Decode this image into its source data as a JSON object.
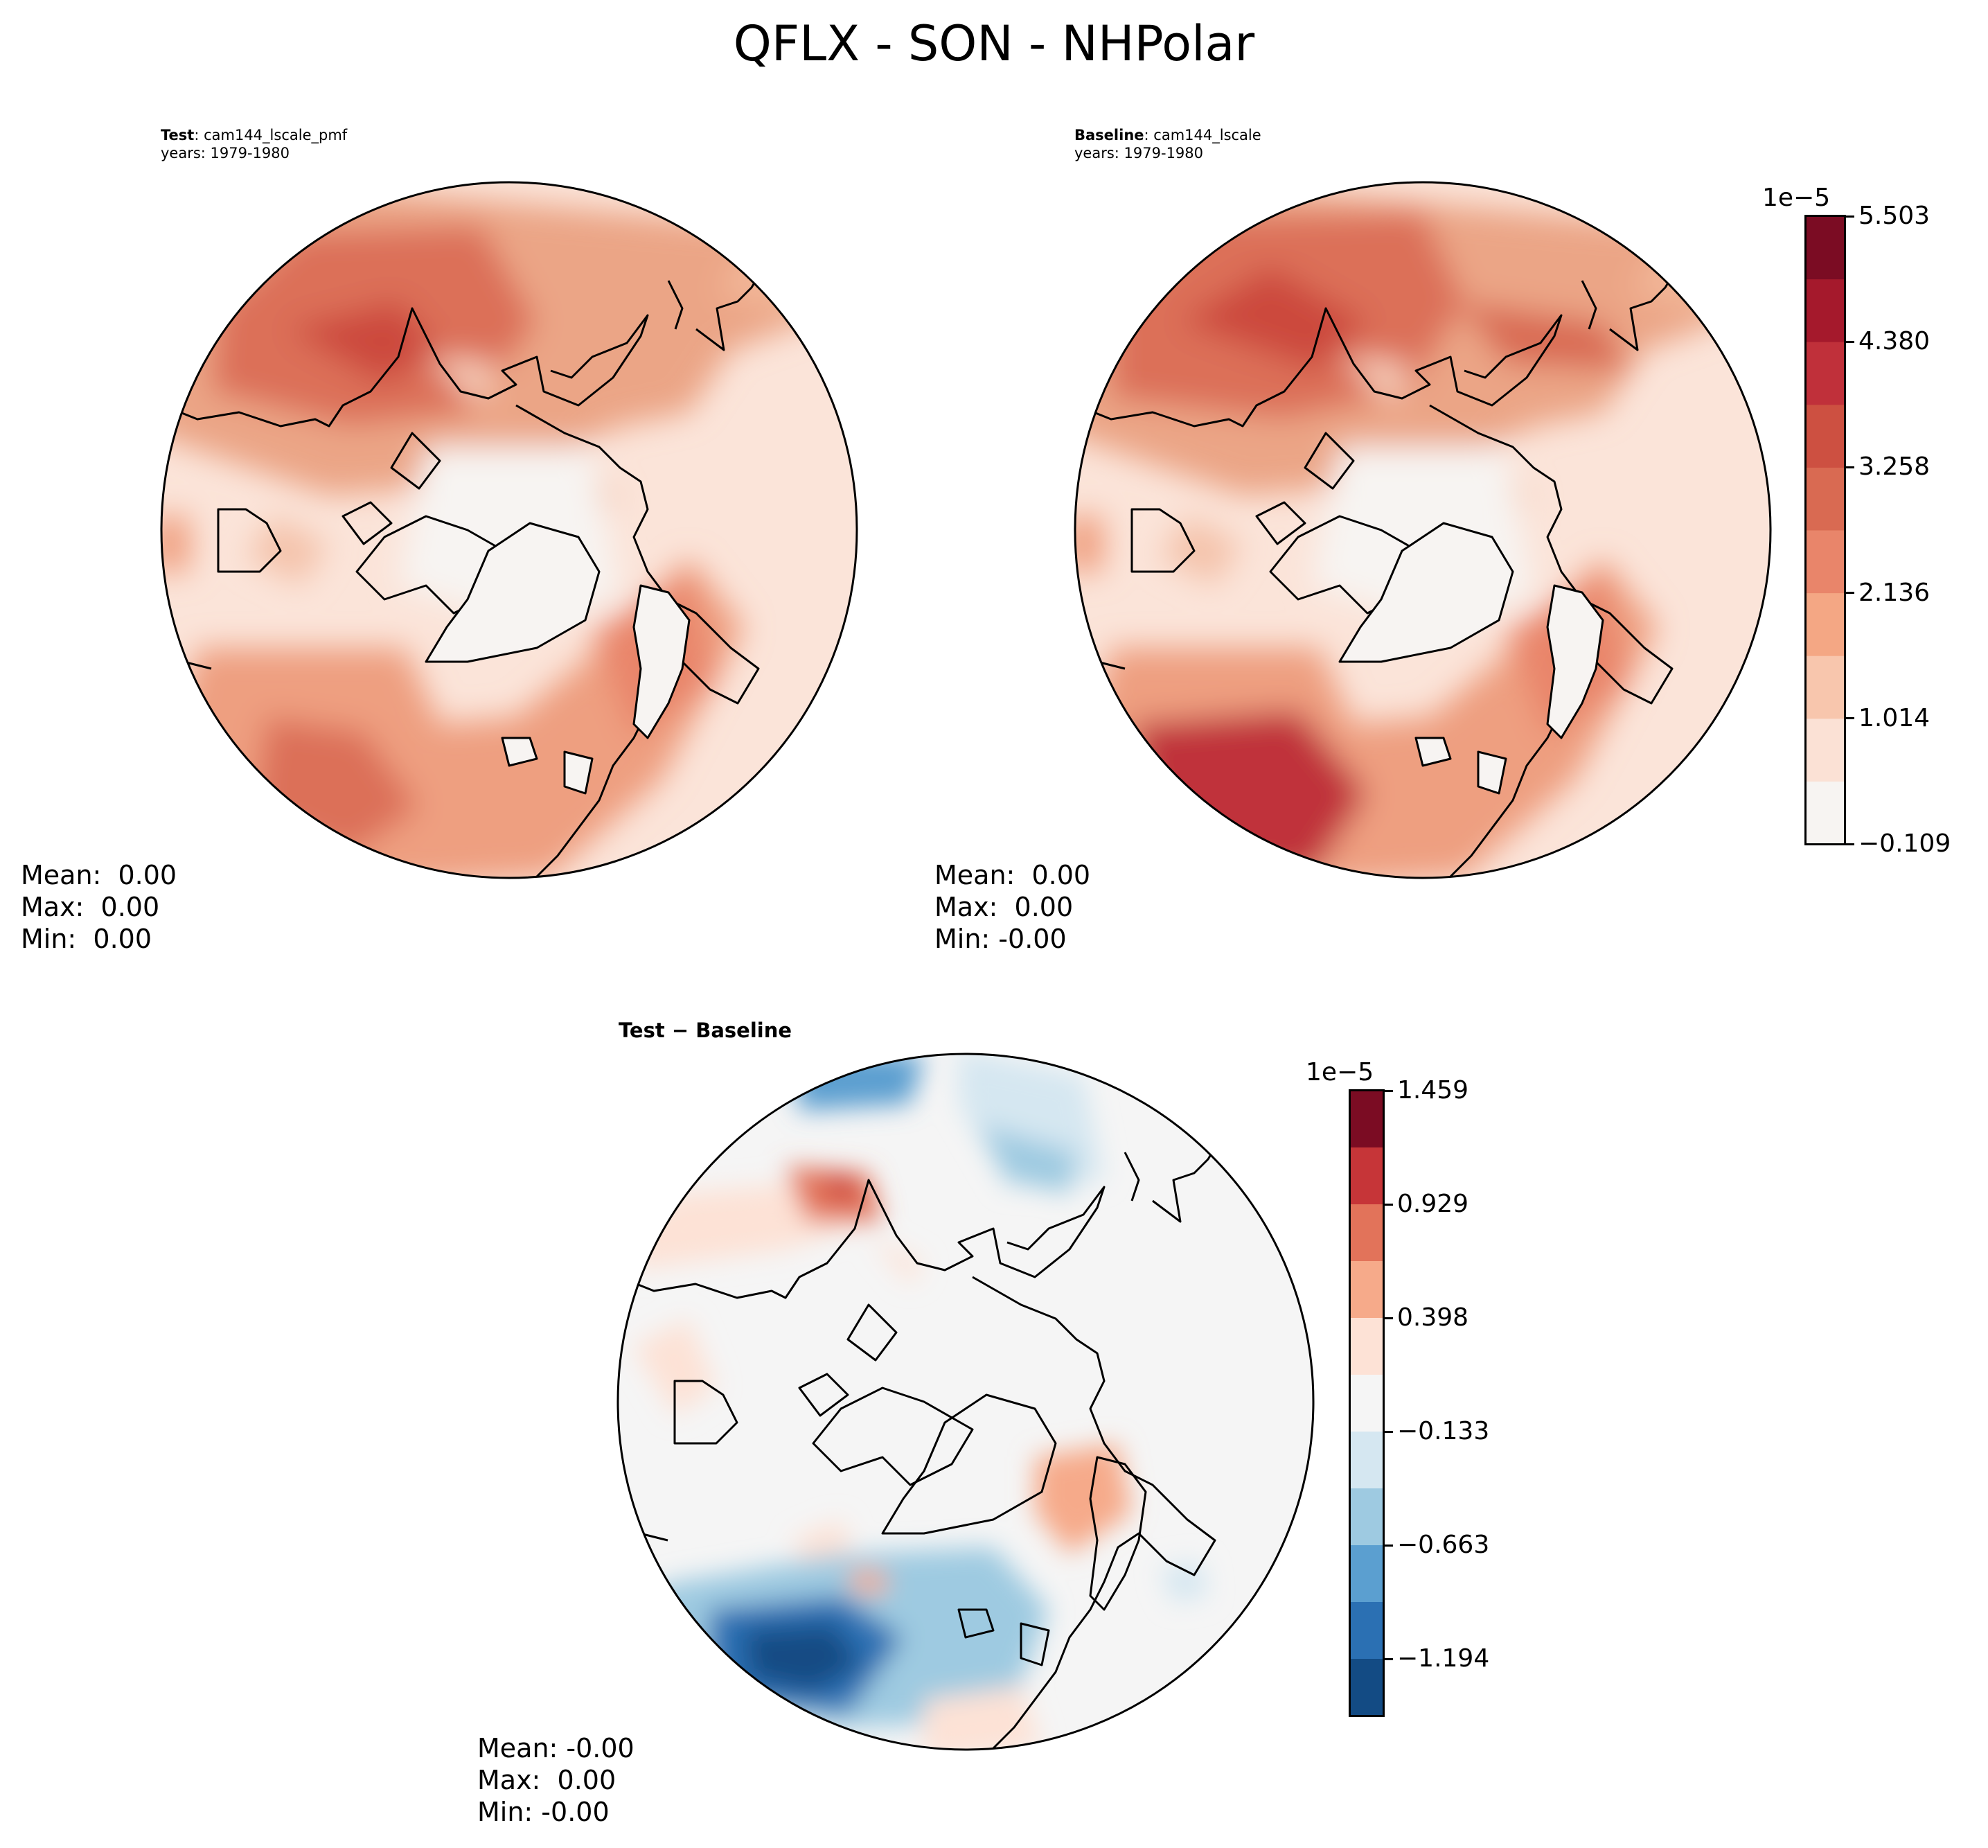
{
  "figure": {
    "title": "QFLX - SON - NHPolar"
  },
  "panels": {
    "test": {
      "label_bold": "Test",
      "label_sep": ": ",
      "case": "cam144_lscale_pmf",
      "years": "years: 1979-1980",
      "stats": "Mean:  0.00\nMax:  0.00\nMin:  0.00"
    },
    "baseline": {
      "label_bold": "Baseline",
      "label_sep": ": ",
      "case": "cam144_lscale",
      "years": "years: 1979-1980",
      "stats": "Mean:  0.00\nMax:  0.00\nMin: -0.00"
    },
    "diff": {
      "label": "Test − Baseline",
      "stats": "Mean: -0.00\nMax:  0.00\nMin: -0.00"
    }
  },
  "colorbars": {
    "main": {
      "exponent": "1e−5",
      "tick_labels": [
        "−0.109",
        "1.014",
        "2.136",
        "3.258",
        "4.380",
        "5.503"
      ],
      "tick_values": [
        -0.109,
        1.014,
        2.136,
        3.258,
        4.38,
        5.503
      ],
      "colors": [
        "#f7f4f2",
        "#fbe1d5",
        "#f8c6ad",
        "#f4a784",
        "#e9856a",
        "#d96a52",
        "#cd5041",
        "#c0303a",
        "#a5192c",
        "#7b0c23"
      ]
    },
    "diff": {
      "exponent": "1e−5",
      "tick_labels": [
        "1.459",
        "0.929",
        "0.398",
        "−0.133",
        "−0.663",
        "−1.194"
      ],
      "tick_values": [
        1.459,
        0.929,
        0.398,
        -0.133,
        -0.663,
        -1.194
      ],
      "colors": [
        "#7b0c23",
        "#c63538",
        "#e2735a",
        "#f6aa8a",
        "#fde2d6",
        "#f5f5f5",
        "#d5e7f1",
        "#9ecae1",
        "#5b9fd0",
        "#2b70b3",
        "#134b84"
      ]
    }
  }
}
